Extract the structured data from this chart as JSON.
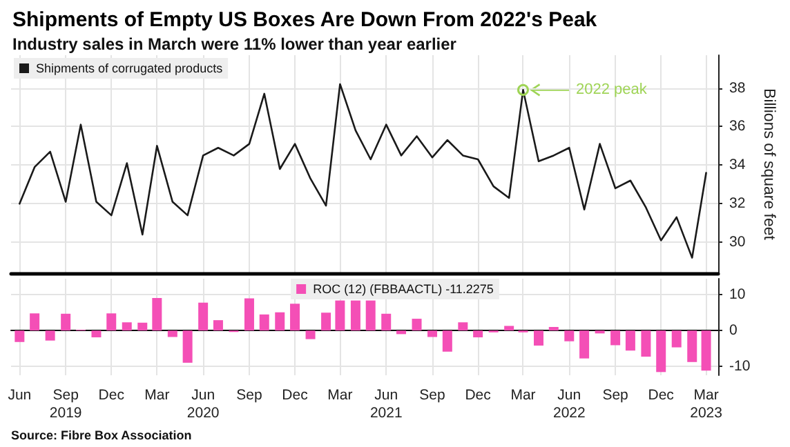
{
  "chart_data": [
    {
      "type": "line",
      "title": "Shipments of Empty US Boxes Are Down From 2022's Peak",
      "subtitle": "Industry sales in March were 11% lower than year earlier",
      "ylabel": "Billions of square feet",
      "x": [
        "2019-06",
        "2019-07",
        "2019-08",
        "2019-09",
        "2019-10",
        "2019-11",
        "2019-12",
        "2020-01",
        "2020-02",
        "2020-03",
        "2020-04",
        "2020-05",
        "2020-06",
        "2020-07",
        "2020-08",
        "2020-09",
        "2020-10",
        "2020-11",
        "2020-12",
        "2021-01",
        "2021-02",
        "2021-03",
        "2021-04",
        "2021-05",
        "2021-06",
        "2021-07",
        "2021-08",
        "2021-09",
        "2021-10",
        "2021-11",
        "2021-12",
        "2022-01",
        "2022-02",
        "2022-03",
        "2022-04",
        "2022-05",
        "2022-06",
        "2022-07",
        "2022-08",
        "2022-09",
        "2022-10",
        "2022-11",
        "2022-12",
        "2023-01",
        "2023-02",
        "2023-03"
      ],
      "series": [
        {
          "name": "Shipments of corrugated products",
          "color": "#1a1a1a",
          "values": [
            32.0,
            33.9,
            34.7,
            32.1,
            36.1,
            32.1,
            31.4,
            34.1,
            30.4,
            35.0,
            32.1,
            31.4,
            34.5,
            34.9,
            34.5,
            35.1,
            37.7,
            33.8,
            35.1,
            33.3,
            31.9,
            38.2,
            35.8,
            34.3,
            36.1,
            34.5,
            35.5,
            34.4,
            35.3,
            34.5,
            34.3,
            32.9,
            32.3,
            37.9,
            34.2,
            34.5,
            34.9,
            31.7,
            35.1,
            32.8,
            33.2,
            31.8,
            30.1,
            31.3,
            29.2,
            33.6
          ]
        }
      ],
      "xlim": [
        "2019-05-15",
        "2023-03-25"
      ],
      "xticks": [
        {
          "value": "2019-06",
          "label": null
        },
        {
          "value": "2019-09",
          "label": null
        },
        {
          "value": "2019-12",
          "label": null
        },
        {
          "value": "2020-03",
          "label": null
        },
        {
          "value": "2020-06",
          "label": null
        },
        {
          "value": "2020-09",
          "label": null
        },
        {
          "value": "2020-12",
          "label": null
        },
        {
          "value": "2021-03",
          "label": null
        },
        {
          "value": "2021-06",
          "label": null
        },
        {
          "value": "2021-09",
          "label": null
        },
        {
          "value": "2021-12",
          "label": null
        },
        {
          "value": "2022-03",
          "label": null
        },
        {
          "value": "2022-06",
          "label": null
        },
        {
          "value": "2022-09",
          "label": null
        },
        {
          "value": "2022-12",
          "label": null
        },
        {
          "value": "2023-03",
          "label": null
        }
      ],
      "ylim": [
        28.4,
        39.7
      ],
      "yticks": [
        30,
        32,
        34,
        36,
        38
      ],
      "tick_labels": "y",
      "grid": true,
      "legend": "top left",
      "marker": "none",
      "line_style": "solid",
      "annotations": [
        {
          "text": "2022 peak",
          "x": "2022-03",
          "y": 37.9
        }
      ]
    },
    {
      "type": "bar",
      "x": [
        "2019-06",
        "2019-07",
        "2019-08",
        "2019-09",
        "2019-10",
        "2019-11",
        "2019-12",
        "2020-01",
        "2020-02",
        "2020-03",
        "2020-04",
        "2020-05",
        "2020-06",
        "2020-07",
        "2020-08",
        "2020-09",
        "2020-10",
        "2020-11",
        "2020-12",
        "2021-01",
        "2021-02",
        "2021-03",
        "2021-04",
        "2021-05",
        "2021-06",
        "2021-07",
        "2021-08",
        "2021-09",
        "2021-10",
        "2021-11",
        "2021-12",
        "2022-01",
        "2022-02",
        "2022-03",
        "2022-04",
        "2022-05",
        "2022-06",
        "2022-07",
        "2022-08",
        "2022-09",
        "2022-10",
        "2022-11",
        "2022-12",
        "2023-01",
        "2023-02",
        "2023-03"
      ],
      "series": [
        {
          "name": "ROC (12) (FBBAACTL) -11.2275",
          "color": "#f44fb6",
          "values": [
            -3.2,
            4.8,
            -2.8,
            4.7,
            0.2,
            -1.9,
            4.8,
            2.3,
            2.2,
            9.1,
            -1.8,
            -9.0,
            7.8,
            2.9,
            -0.4,
            9.0,
            4.5,
            5.1,
            7.5,
            -2.4,
            5.0,
            8.4,
            8.4,
            8.4,
            4.7,
            -1.0,
            3.3,
            -1.8,
            -5.9,
            2.3,
            -1.9,
            -0.5,
            1.3,
            -0.5,
            -4.2,
            1.0,
            -3.0,
            -7.8,
            -0.8,
            -4.1,
            -5.6,
            -7.3,
            -11.6,
            -4.7,
            -8.8,
            -11.2
          ]
        }
      ],
      "xlim": [
        "2019-05-15",
        "2023-03-25"
      ],
      "xticks": [
        {
          "value": "2019-06",
          "label": "Jun"
        },
        {
          "value": "2019-09",
          "label": "Sep\n2019"
        },
        {
          "value": "2019-12",
          "label": "Dec"
        },
        {
          "value": "2020-03",
          "label": "Mar"
        },
        {
          "value": "2020-06",
          "label": "Jun\n2020"
        },
        {
          "value": "2020-09",
          "label": "Sep"
        },
        {
          "value": "2020-12",
          "label": "Dec"
        },
        {
          "value": "2021-03",
          "label": "Mar"
        },
        {
          "value": "2021-06",
          "label": "Jun\n2021"
        },
        {
          "value": "2021-09",
          "label": "Sep"
        },
        {
          "value": "2021-12",
          "label": "Dec"
        },
        {
          "value": "2022-03",
          "label": "Mar"
        },
        {
          "value": "2022-06",
          "label": "Jun\n2022"
        },
        {
          "value": "2022-09",
          "label": "Sep"
        },
        {
          "value": "2022-12",
          "label": "Dec"
        },
        {
          "value": "2023-03",
          "label": "Mar\n2023"
        }
      ],
      "ylim": [
        -12.5,
        14.5
      ],
      "yticks": [
        -10,
        0,
        10
      ],
      "grid": true,
      "legend": "top",
      "annotations": [
        "Source: Fibre Box Association"
      ]
    }
  ]
}
